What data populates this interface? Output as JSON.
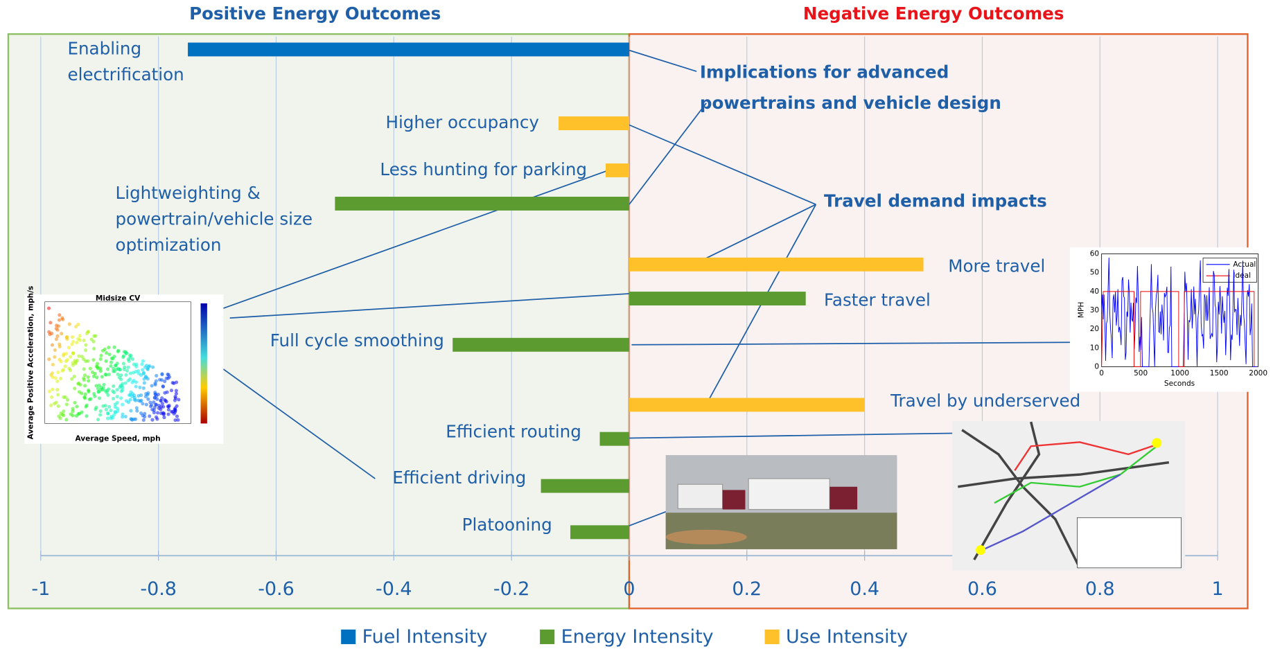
{
  "chart_data": {
    "type": "bar",
    "orientation": "horizontal",
    "panel_titles": [
      "Positive Energy Outcomes",
      "Negative Energy Outcomes"
    ],
    "annotations": [
      "Implications for advanced powertrains and vehicle design",
      "Travel demand impacts"
    ],
    "categories": [
      "Enabling electrification",
      "Higher occupancy",
      "Less hunting for parking",
      "Lightweighting & powertrain/vehicle size optimization",
      "More travel",
      "Faster travel",
      "Full cycle smoothing",
      "Travel by underserved",
      "Efficient routing",
      "Efficient driving",
      "Platooning"
    ],
    "series": [
      {
        "name": "Fuel Intensity",
        "color": "#0070c0",
        "values": [
          -0.75,
          null,
          null,
          null,
          null,
          null,
          null,
          null,
          null,
          null,
          null
        ]
      },
      {
        "name": "Energy Intensity",
        "color": "#5b9b2f",
        "values": [
          null,
          null,
          null,
          -0.5,
          null,
          0.3,
          -0.3,
          null,
          -0.05,
          -0.15,
          -0.1
        ]
      },
      {
        "name": "Use Intensity",
        "color": "#ffc12a",
        "values": [
          null,
          -0.12,
          -0.04,
          null,
          0.5,
          null,
          null,
          0.4,
          null,
          null,
          null
        ]
      }
    ],
    "xlim": [
      -1,
      1
    ],
    "xticks": [
      -1,
      -0.8,
      -0.6,
      -0.4,
      -0.2,
      0,
      0.2,
      0.4,
      0.6,
      0.8,
      1
    ],
    "grid": true,
    "legend": "bottom"
  },
  "insets": {
    "scatter": {
      "title": "Midsize CV",
      "xlabel": "Average Speed, mph",
      "ylabel": "Average Positive Acceleration, mph/s"
    },
    "speed_trace": {
      "ylabel": "MPH",
      "xlabel": "Seconds",
      "legend": [
        "Actual",
        "Ideal"
      ],
      "xticks": [
        0,
        500,
        1000,
        1500,
        2000
      ],
      "yticks": [
        0,
        10,
        20,
        30,
        40,
        50,
        60
      ]
    }
  }
}
